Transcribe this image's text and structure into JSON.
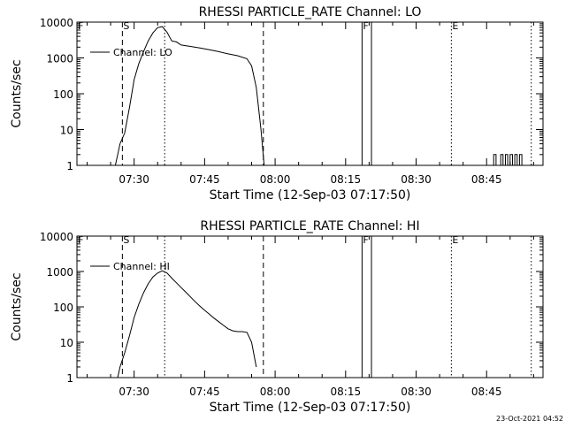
{
  "timestamp": "23-Oct-2021 04:52",
  "chart_data": [
    {
      "type": "line",
      "title": "RHESSI PARTICLE_RATE Channel: LO",
      "xlabel": "Start Time (12-Sep-03 07:17:50)",
      "ylabel": "Counts/sec",
      "legend": "Channel: LO",
      "legend_position": "top-left",
      "y_scale": "log",
      "ylim": [
        1,
        10000
      ],
      "xlim": [
        "07:17:50",
        "08:57:00"
      ],
      "x_ticks": [
        "07:30",
        "07:45",
        "08:00",
        "08:15",
        "08:30",
        "08:45"
      ],
      "y_ticks": [
        "1",
        "10",
        "100",
        "1000",
        "10000"
      ],
      "markers": [
        {
          "label": "F",
          "time": "07:17:50",
          "style": "none"
        },
        {
          "label": "S",
          "time": "07:27:30",
          "style": "dashed"
        },
        {
          "label": "",
          "time": "07:36:30",
          "style": "dotted"
        },
        {
          "label": "",
          "time": "07:57:30",
          "style": "dashed"
        },
        {
          "label": "F",
          "time": "08:18:30",
          "style": "solid"
        },
        {
          "label": "",
          "time": "08:20:30",
          "style": "solid"
        },
        {
          "label": "E",
          "time": "08:37:30",
          "style": "dotted"
        },
        {
          "label": "",
          "time": "08:54:30",
          "style": "dotted"
        }
      ],
      "series": [
        {
          "x": [
            "07:26:00",
            "07:26:30",
            "07:27:00",
            "07:28:00",
            "07:29:00",
            "07:30:00",
            "07:31:00",
            "07:32:00",
            "07:33:00",
            "07:34:00",
            "07:35:00",
            "07:36:00",
            "07:37:00",
            "07:38:00",
            "07:39:00",
            "07:40:00",
            "07:42:00",
            "07:44:00",
            "07:46:00",
            "07:48:00",
            "07:50:00",
            "07:52:00",
            "07:54:00",
            "07:55:00",
            "07:56:00",
            "07:57:00",
            "07:57:40"
          ],
          "y": [
            1,
            2,
            4,
            8,
            40,
            250,
            700,
            1500,
            3000,
            5000,
            7000,
            7500,
            5200,
            3000,
            2800,
            2300,
            2100,
            1900,
            1700,
            1500,
            1300,
            1150,
            950,
            600,
            150,
            10,
            1
          ]
        },
        {
          "x": [
            "08:46:30",
            "08:46:30",
            "08:47:00",
            "08:47:00",
            "08:48:00",
            "08:48:00",
            "08:48:30",
            "08:48:30",
            "08:49:00",
            "08:49:00",
            "08:49:30",
            "08:49:30",
            "08:50:00",
            "08:50:00",
            "08:50:30",
            "08:50:30",
            "08:51:00",
            "08:51:00",
            "08:51:30",
            "08:51:30",
            "08:52:00",
            "08:52:00",
            "08:52:30",
            "08:52:30"
          ],
          "y": [
            1,
            2,
            2,
            1,
            1,
            2,
            2,
            1,
            1,
            2,
            2,
            1,
            1,
            2,
            2,
            1,
            1,
            2,
            2,
            1,
            1,
            2,
            2,
            1
          ]
        }
      ]
    },
    {
      "type": "line",
      "title": "RHESSI PARTICLE_RATE Channel: HI",
      "xlabel": "Start Time (12-Sep-03 07:17:50)",
      "ylabel": "Counts/sec",
      "legend": "Channel: HI",
      "legend_position": "top-left",
      "y_scale": "log",
      "ylim": [
        1,
        10000
      ],
      "xlim": [
        "07:17:50",
        "08:57:00"
      ],
      "x_ticks": [
        "07:30",
        "07:45",
        "08:00",
        "08:15",
        "08:30",
        "08:45"
      ],
      "y_ticks": [
        "1",
        "10",
        "100",
        "1000",
        "10000"
      ],
      "markers": [
        {
          "label": "F",
          "time": "07:17:50",
          "style": "none"
        },
        {
          "label": "S",
          "time": "07:27:30",
          "style": "dashed"
        },
        {
          "label": "",
          "time": "07:36:30",
          "style": "dotted"
        },
        {
          "label": "",
          "time": "07:57:30",
          "style": "dashed"
        },
        {
          "label": "F",
          "time": "08:18:30",
          "style": "solid"
        },
        {
          "label": "",
          "time": "08:20:30",
          "style": "solid"
        },
        {
          "label": "E",
          "time": "08:37:30",
          "style": "dotted"
        },
        {
          "label": "",
          "time": "08:54:30",
          "style": "dotted"
        }
      ],
      "series": [
        {
          "x": [
            "07:26:30",
            "07:27:00",
            "07:28:00",
            "07:29:00",
            "07:30:00",
            "07:31:00",
            "07:32:00",
            "07:33:00",
            "07:34:00",
            "07:35:00",
            "07:36:00",
            "07:37:00",
            "07:38:00",
            "07:39:00",
            "07:40:00",
            "07:41:00",
            "07:42:00",
            "07:43:00",
            "07:44:00",
            "07:45:00",
            "07:46:00",
            "07:47:00",
            "07:48:00",
            "07:49:00",
            "07:50:00",
            "07:51:00",
            "07:52:00",
            "07:53:00",
            "07:54:00",
            "07:55:00",
            "07:56:00"
          ],
          "y": [
            1,
            2,
            5,
            15,
            50,
            120,
            250,
            450,
            700,
            900,
            1050,
            900,
            650,
            480,
            350,
            260,
            190,
            140,
            105,
            80,
            62,
            48,
            38,
            30,
            24,
            21,
            20,
            20,
            19,
            10,
            2
          ]
        }
      ]
    }
  ]
}
